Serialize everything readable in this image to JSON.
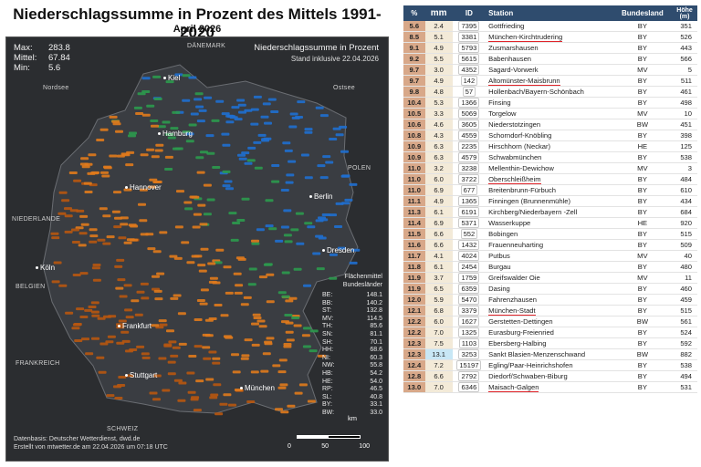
{
  "map": {
    "title": "Niederschlagssumme in Prozent des Mittels 1991-2020",
    "subtitle": "April 2026",
    "stats": [
      {
        "label": "Max:",
        "value": "283.8"
      },
      {
        "label": "Mittel:",
        "value": "67.84"
      },
      {
        "label": "Min:",
        "value": "5.6"
      }
    ],
    "legend_title": "Niederschlagssumme in Prozent",
    "legend_sub": "Stand inklusive 22.04.2026",
    "regions": {
      "danemark": "DÄNEMARK",
      "nordsee": "Nordsee",
      "ostsee": "Ostsee",
      "polen": "POLEN",
      "niederlande": "NIEDERLANDE",
      "belgien": "BELGIEN",
      "frankreich": "FRANKREICH",
      "schweiz": "SCHWEIZ"
    },
    "cities": {
      "kiel": "Kiel",
      "hamburg": "Hamburg",
      "hannover": "Hannover",
      "berlin": "Berlin",
      "dresden": "Dresden",
      "koln": "Köln",
      "frankfurt": "Frankfurt",
      "stuttgart": "Stuttgart",
      "munchen": "München"
    },
    "flaechenmittel": {
      "title_line1": "Flächenmittel",
      "title_line2": "Bundesländer",
      "rows": [
        {
          "land": "BE:",
          "value": "148.1"
        },
        {
          "land": "BB:",
          "value": "140.2"
        },
        {
          "land": "ST:",
          "value": "132.8"
        },
        {
          "land": "MV:",
          "value": "114.5"
        },
        {
          "land": "TH:",
          "value": "85.6"
        },
        {
          "land": "SN:",
          "value": "81.1"
        },
        {
          "land": "SH:",
          "value": "70.1"
        },
        {
          "land": "HH:",
          "value": "68.6"
        },
        {
          "land": "NI:",
          "value": "60.3"
        },
        {
          "land": "NW:",
          "value": "55.8"
        },
        {
          "land": "HB:",
          "value": "54.2"
        },
        {
          "land": "HE:",
          "value": "54.0"
        },
        {
          "land": "RP:",
          "value": "46.5"
        },
        {
          "land": "SL:",
          "value": "40.8"
        },
        {
          "land": "BY:",
          "value": "33.1"
        },
        {
          "land": "BW:",
          "value": "33.0"
        }
      ]
    },
    "footer_line1": "Datenbasis: Deutscher Wetterdienst, dwd.de",
    "footer_line2": "Erstellt von mtwetter.de am 22.04.2026 um 07:18 UTC",
    "scale": {
      "unit": "km",
      "labels": [
        "0",
        "50",
        "100"
      ]
    },
    "colors": {
      "wet": "#1f6fd0",
      "mid": "#2c9a4e",
      "dry": "#e07a1c",
      "very_dry": "#b8560f"
    }
  },
  "table": {
    "headers": {
      "pct": "%",
      "mm": "mm",
      "id": "ID",
      "station": "Station",
      "bundesland": "Bundesland",
      "hoehe": "Höhe (m)"
    },
    "rows": [
      {
        "pct": "5.6",
        "mm": "2.4",
        "id": "7395",
        "station": "Gottfrieding",
        "bl": "BY",
        "h": "351",
        "marked": false,
        "hi": false
      },
      {
        "pct": "8.5",
        "mm": "5.1",
        "id": "3381",
        "station": "München-Kirchtrudering",
        "bl": "BY",
        "h": "526",
        "marked": true,
        "hi": false
      },
      {
        "pct": "9.1",
        "mm": "4.9",
        "id": "5793",
        "station": "Zusmarshausen",
        "bl": "BY",
        "h": "443",
        "marked": false,
        "hi": false
      },
      {
        "pct": "9.2",
        "mm": "5.5",
        "id": "5615",
        "station": "Babenhausen",
        "bl": "BY",
        "h": "566",
        "marked": false,
        "hi": false
      },
      {
        "pct": "9.7",
        "mm": "3.0",
        "id": "4352",
        "station": "Sagard-Vorwerk",
        "bl": "MV",
        "h": "5",
        "marked": false,
        "hi": false
      },
      {
        "pct": "9.7",
        "mm": "4.9",
        "id": "142",
        "station": "Altomünster-Maisbrunn",
        "bl": "BY",
        "h": "511",
        "marked": true,
        "hi": false
      },
      {
        "pct": "9.8",
        "mm": "4.8",
        "id": "57",
        "station": "Hollenbach/Bayern-Schönbach",
        "bl": "BY",
        "h": "461",
        "marked": false,
        "hi": false
      },
      {
        "pct": "10.4",
        "mm": "5.3",
        "id": "1366",
        "station": "Finsing",
        "bl": "BY",
        "h": "498",
        "marked": false,
        "hi": false
      },
      {
        "pct": "10.5",
        "mm": "3.3",
        "id": "5069",
        "station": "Torgelow",
        "bl": "MV",
        "h": "10",
        "marked": false,
        "hi": false
      },
      {
        "pct": "10.6",
        "mm": "4.6",
        "id": "3605",
        "station": "Niederstotzingen",
        "bl": "BW",
        "h": "451",
        "marked": false,
        "hi": false
      },
      {
        "pct": "10.8",
        "mm": "4.3",
        "id": "4559",
        "station": "Schorndorf-Knöbling",
        "bl": "BY",
        "h": "398",
        "marked": false,
        "hi": false
      },
      {
        "pct": "10.9",
        "mm": "6.3",
        "id": "2235",
        "station": "Hirschhorn (Neckar)",
        "bl": "HE",
        "h": "125",
        "marked": false,
        "hi": false
      },
      {
        "pct": "10.9",
        "mm": "6.3",
        "id": "4579",
        "station": "Schwabmünchen",
        "bl": "BY",
        "h": "538",
        "marked": false,
        "hi": false
      },
      {
        "pct": "11.0",
        "mm": "3.2",
        "id": "3238",
        "station": "Mellenthin-Dewichow",
        "bl": "MV",
        "h": "3",
        "marked": false,
        "hi": false
      },
      {
        "pct": "11.0",
        "mm": "6.0",
        "id": "3722",
        "station": "Oberschleißheim",
        "bl": "BY",
        "h": "484",
        "marked": true,
        "hi": false
      },
      {
        "pct": "11.0",
        "mm": "6.9",
        "id": "677",
        "station": "Breitenbrunn-Fürbuch",
        "bl": "BY",
        "h": "610",
        "marked": false,
        "hi": false
      },
      {
        "pct": "11.1",
        "mm": "4.9",
        "id": "1365",
        "station": "Finningen (Brunnenmühle)",
        "bl": "BY",
        "h": "434",
        "marked": false,
        "hi": false
      },
      {
        "pct": "11.3",
        "mm": "6.1",
        "id": "6191",
        "station": "Kirchberg/Niederbayern -Zell",
        "bl": "BY",
        "h": "684",
        "marked": false,
        "hi": false
      },
      {
        "pct": "11.4",
        "mm": "6.9",
        "id": "5371",
        "station": "Wasserkuppe",
        "bl": "HE",
        "h": "920",
        "marked": false,
        "hi": false
      },
      {
        "pct": "11.5",
        "mm": "6.6",
        "id": "552",
        "station": "Bobingen",
        "bl": "BY",
        "h": "515",
        "marked": false,
        "hi": false
      },
      {
        "pct": "11.6",
        "mm": "6.6",
        "id": "1432",
        "station": "Frauenneuharting",
        "bl": "BY",
        "h": "509",
        "marked": false,
        "hi": false
      },
      {
        "pct": "11.7",
        "mm": "4.1",
        "id": "4024",
        "station": "Putbus",
        "bl": "MV",
        "h": "40",
        "marked": false,
        "hi": false
      },
      {
        "pct": "11.8",
        "mm": "6.1",
        "id": "2454",
        "station": "Burgau",
        "bl": "BY",
        "h": "480",
        "marked": false,
        "hi": false
      },
      {
        "pct": "11.9",
        "mm": "3.7",
        "id": "1759",
        "station": "Greifswalder Oie",
        "bl": "MV",
        "h": "11",
        "marked": false,
        "hi": false
      },
      {
        "pct": "11.9",
        "mm": "6.5",
        "id": "6359",
        "station": "Dasing",
        "bl": "BY",
        "h": "460",
        "marked": false,
        "hi": false
      },
      {
        "pct": "12.0",
        "mm": "5.9",
        "id": "5470",
        "station": "Fahrenzhausen",
        "bl": "BY",
        "h": "459",
        "marked": false,
        "hi": false
      },
      {
        "pct": "12.1",
        "mm": "6.8",
        "id": "3379",
        "station": "München-Stadt",
        "bl": "BY",
        "h": "515",
        "marked": true,
        "hi": false
      },
      {
        "pct": "12.2",
        "mm": "6.0",
        "id": "1627",
        "station": "Gerstetten-Dettingen",
        "bl": "BW",
        "h": "561",
        "marked": false,
        "hi": false
      },
      {
        "pct": "12.2",
        "mm": "7.0",
        "id": "1325",
        "station": "Eurasburg-Freienried",
        "bl": "BY",
        "h": "524",
        "marked": false,
        "hi": false
      },
      {
        "pct": "12.3",
        "mm": "7.5",
        "id": "1103",
        "station": "Ebersberg-Halbing",
        "bl": "BY",
        "h": "592",
        "marked": false,
        "hi": false
      },
      {
        "pct": "12.3",
        "mm": "13.1",
        "id": "3253",
        "station": "Sankt Blasien-Menzenschwand",
        "bl": "BW",
        "h": "882",
        "marked": false,
        "hi": true
      },
      {
        "pct": "12.4",
        "mm": "7.2",
        "id": "15197",
        "station": "Egling/Paar-Heinrichshofen",
        "bl": "BY",
        "h": "538",
        "marked": false,
        "hi": false
      },
      {
        "pct": "12.8",
        "mm": "6.6",
        "id": "2792",
        "station": "Diedorf/Schwaben-Biburg",
        "bl": "BY",
        "h": "494",
        "marked": false,
        "hi": false
      },
      {
        "pct": "13.0",
        "mm": "7.0",
        "id": "6346",
        "station": "Maisach-Galgen",
        "bl": "BY",
        "h": "531",
        "marked": true,
        "hi": false
      }
    ]
  }
}
